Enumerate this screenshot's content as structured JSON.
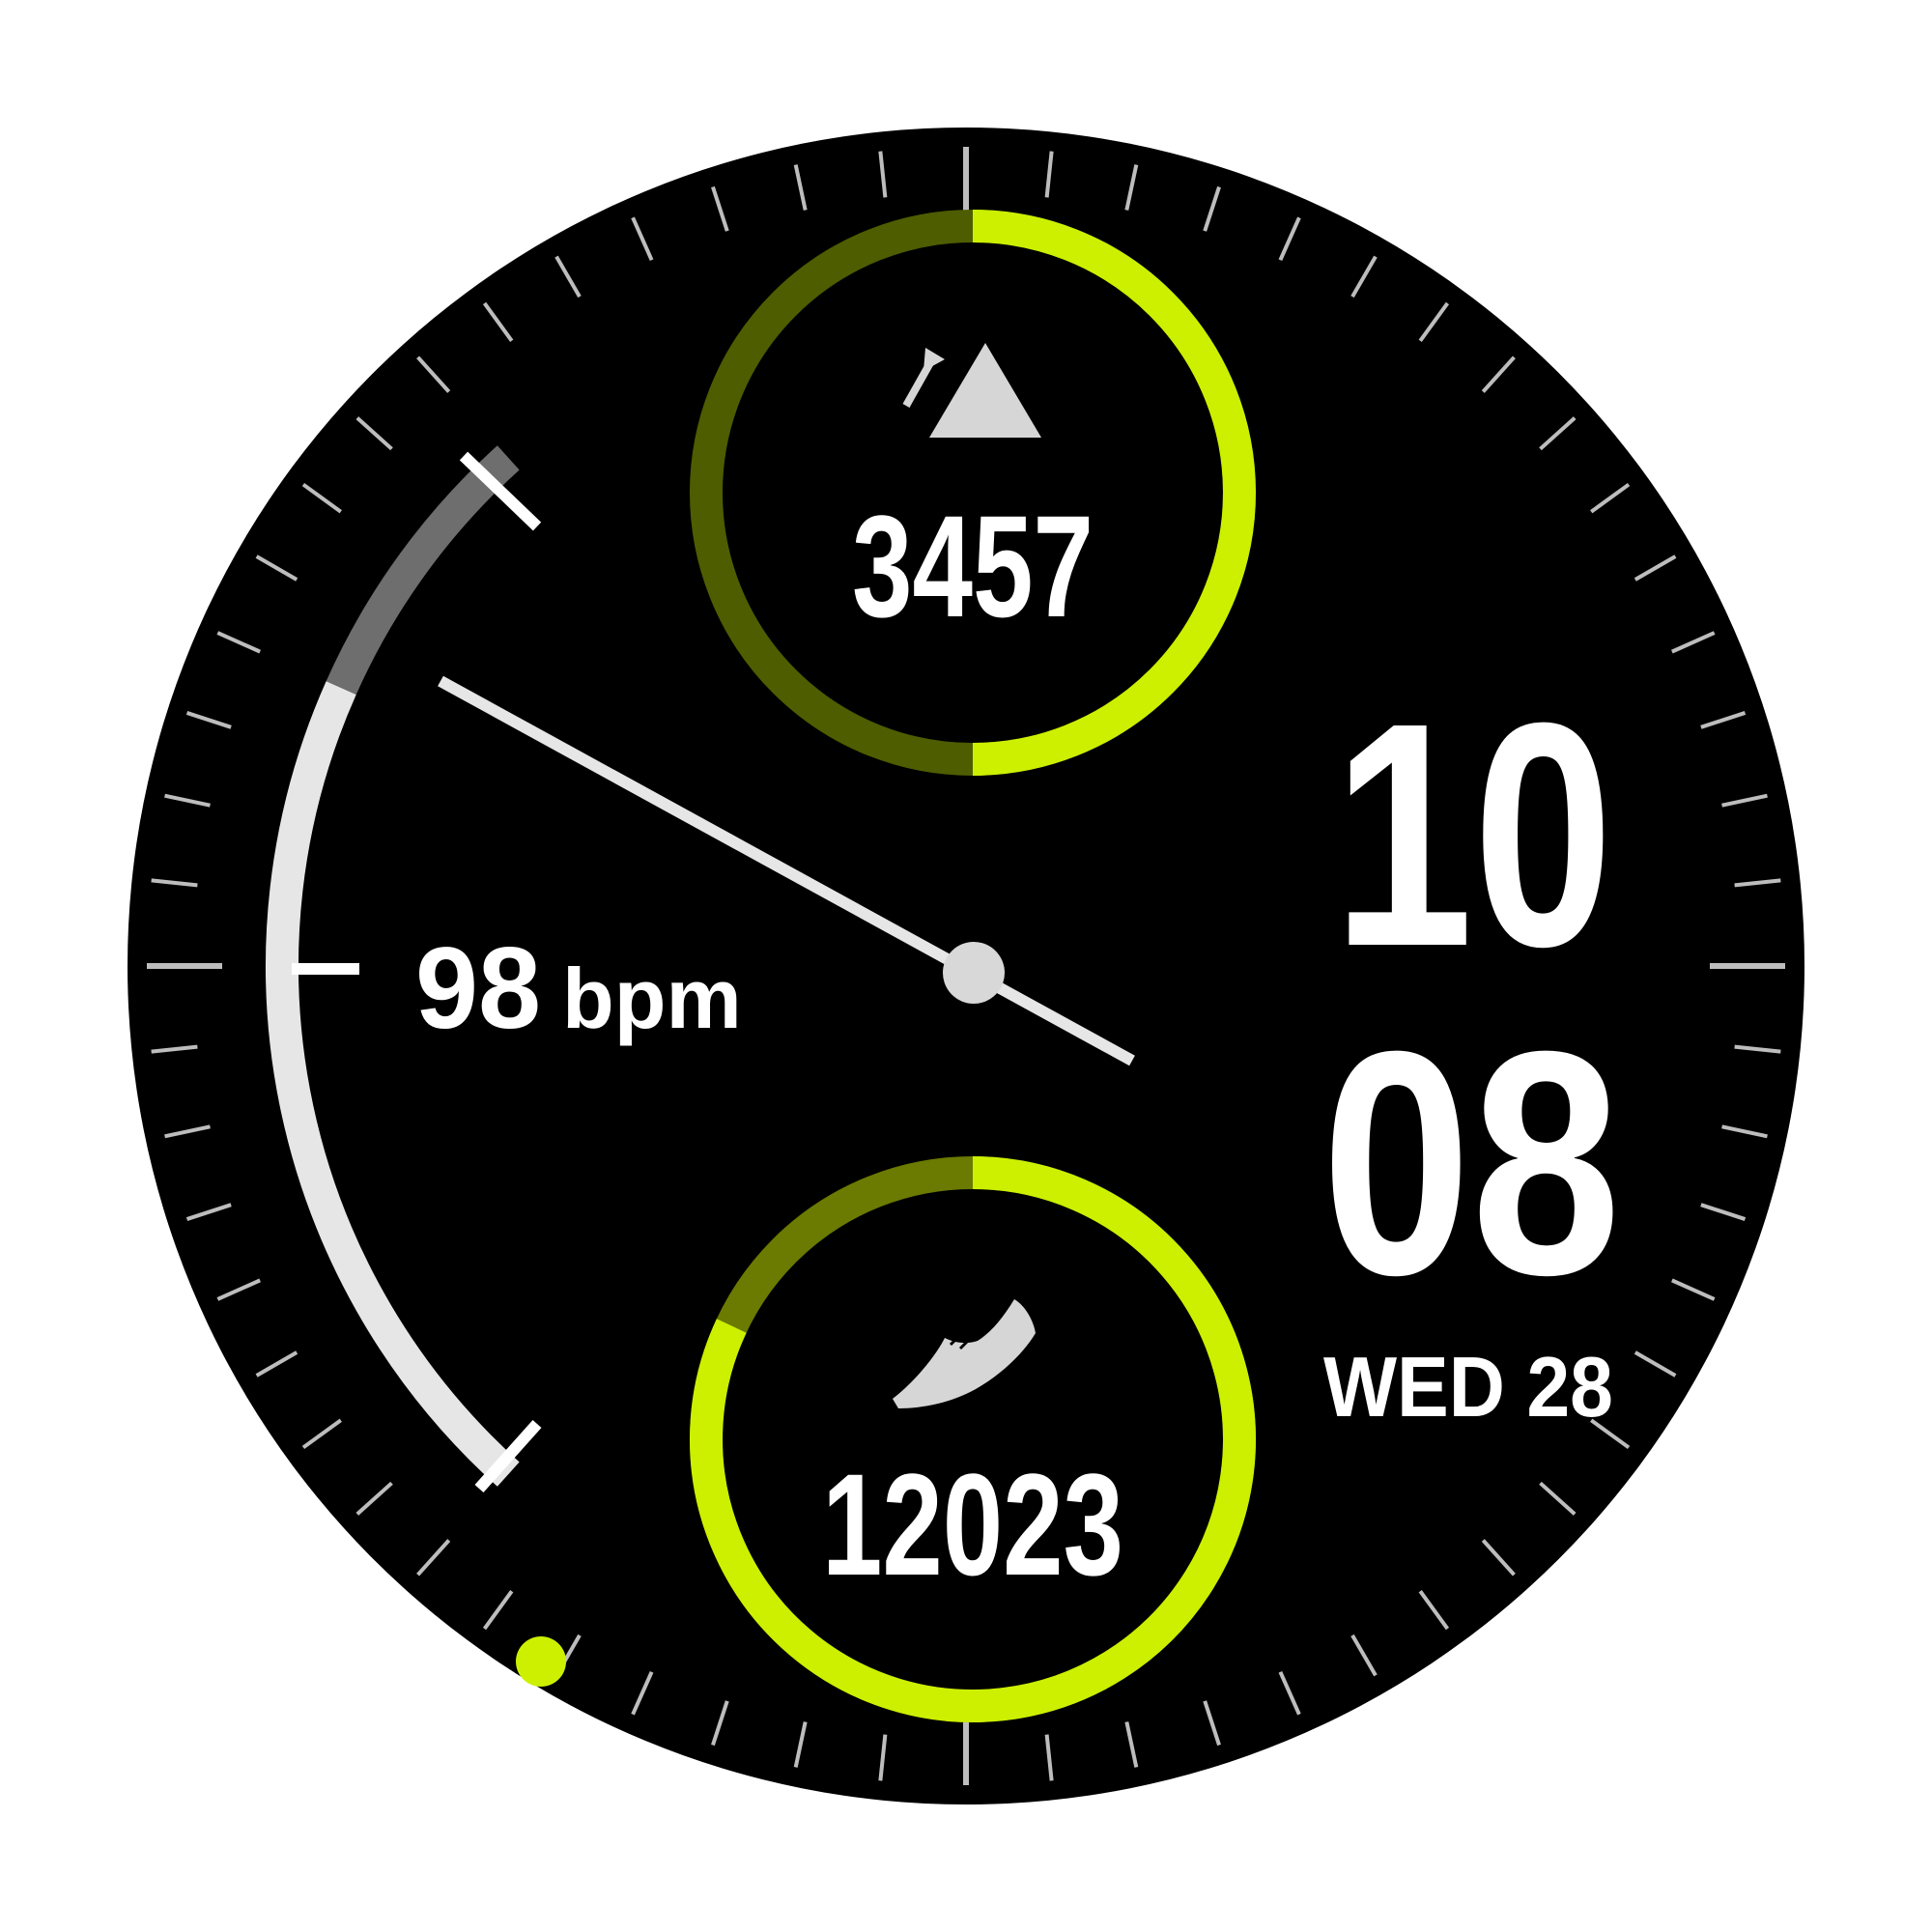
{
  "colors": {
    "dial": "#000000",
    "accent": "#ccf000",
    "accent_dim": "#4d5d00",
    "accent_mid": "#6b7a00",
    "text": "#ffffff",
    "tick": "#cfcfcf",
    "gauge_light": "#e6e6e6",
    "gauge_gray": "#6e6e6e"
  },
  "time": {
    "hours": "10",
    "minutes": "08"
  },
  "date": {
    "label": "WED 28"
  },
  "ascent": {
    "icon": "mountain-ascent-icon",
    "value": "3457",
    "progress": 0.5
  },
  "steps": {
    "icon": "running-shoe-icon",
    "value": "12023",
    "progress": 0.82
  },
  "heart_rate": {
    "value": "98",
    "unit": "bpm",
    "gauge_level": 0.75
  },
  "page_indicator": {
    "icon": "page-dot-icon",
    "active": true
  }
}
